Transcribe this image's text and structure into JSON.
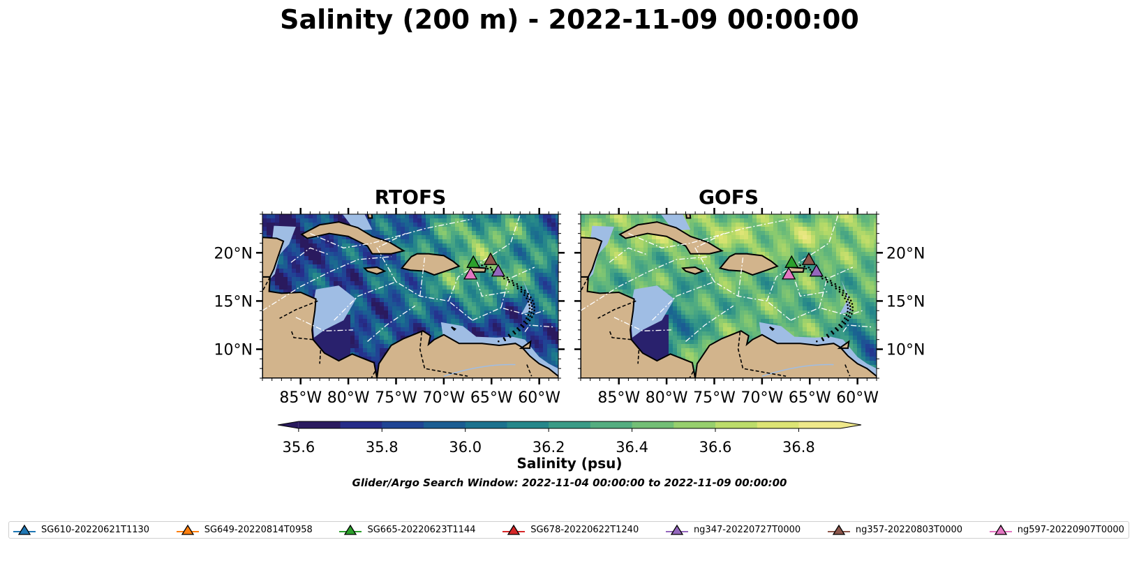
{
  "figure": {
    "title": "Salinity (200 m) - 2022-11-09 00:00:00",
    "colorbar_label": "Salinity (psu)",
    "search_window": "Glider/Argo Search Window: 2022-11-04 00:00:00 to 2022-11-09 00:00:00"
  },
  "colors": {
    "land": "#d2b48c",
    "shelf": "#9fbde4",
    "colormap": [
      "#2a1a5e",
      "#262e8c",
      "#1f4a96",
      "#1a6391",
      "#1d7a8c",
      "#2d9088",
      "#47a584",
      "#66b97a",
      "#8ccb6e",
      "#b6da68",
      "#dbe472",
      "#efe88a"
    ]
  },
  "axes": {
    "lon_ticks": [
      "85°W",
      "80°W",
      "75°W",
      "70°W",
      "65°W",
      "60°W"
    ],
    "lat_ticks": [
      "20°N",
      "15°N",
      "10°N"
    ]
  },
  "maps": [
    {
      "id": "rtofs",
      "title": "RTOFS",
      "lon_range": [
        -89,
        -58
      ],
      "lat_range": [
        7,
        24
      ]
    },
    {
      "id": "gofs",
      "title": "GOFS",
      "lon_range": [
        -89,
        -58
      ],
      "lat_range": [
        7,
        24
      ]
    }
  ],
  "colorbar": {
    "ticks": [
      "35.6",
      "35.8",
      "36.0",
      "36.2",
      "36.4",
      "36.6",
      "36.8"
    ],
    "range": [
      35.55,
      36.95
    ]
  },
  "legend": [
    {
      "name": "SG610-20220621T1130",
      "color": "#1f77b4"
    },
    {
      "name": "SG649-20220814T0958",
      "color": "#ff7f0e"
    },
    {
      "name": "SG665-20220623T1144",
      "color": "#2ca02c"
    },
    {
      "name": "SG678-20220622T1240",
      "color": "#d62728"
    },
    {
      "name": "ng347-20220727T0000",
      "color": "#9467bd"
    },
    {
      "name": "ng357-20220803T0000",
      "color": "#8c564b"
    },
    {
      "name": "ng597-20220907T0000",
      "color": "#e377c2"
    }
  ],
  "gliders": [
    {
      "name": "SG665-20220623T1144",
      "color": "#2ca02c",
      "lon": -66.9,
      "lat": 19.0
    },
    {
      "name": "ng357-20220803T0000",
      "color": "#8c564b",
      "lon": -65.1,
      "lat": 19.3
    },
    {
      "name": "ng347-20220727T0000",
      "color": "#9467bd",
      "lon": -64.3,
      "lat": 18.1
    },
    {
      "name": "ng597-20220907T0000",
      "color": "#e377c2",
      "lon": -67.2,
      "lat": 17.8
    }
  ]
}
